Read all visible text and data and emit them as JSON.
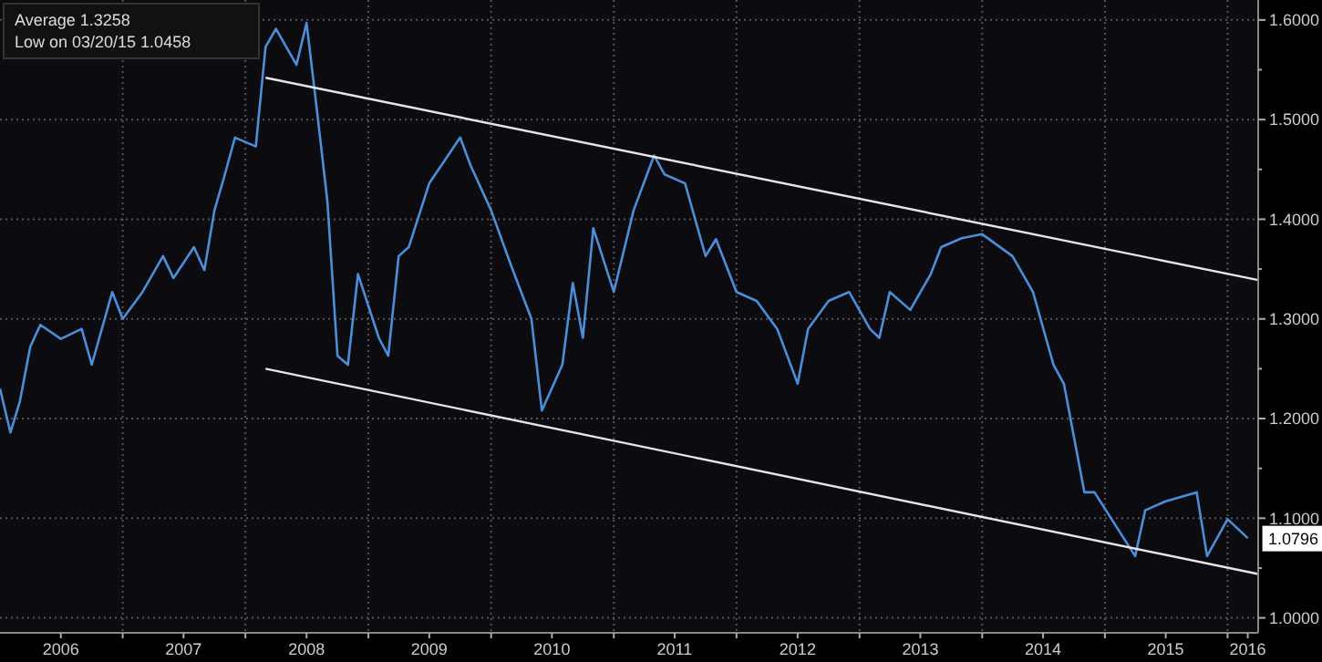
{
  "chart_data": {
    "type": "line",
    "x": [
      "2006-01",
      "2006-02",
      "2006-03",
      "2006-04",
      "2006-05",
      "2006-07",
      "2006-09",
      "2006-10",
      "2006-12",
      "2007-01",
      "2007-03",
      "2007-05",
      "2007-06",
      "2007-08",
      "2007-09",
      "2007-10",
      "2007-11",
      "2007-12",
      "2008-02",
      "2008-03",
      "2008-04",
      "2008-06",
      "2008-07",
      "2008-08",
      "2008-09",
      "2008-10",
      "2008-11",
      "2008-12",
      "2009-02",
      "2009-03",
      "2009-04",
      "2009-05",
      "2009-07",
      "2009-10",
      "2009-11",
      "2010-01",
      "2010-03",
      "2010-05",
      "2010-06",
      "2010-08",
      "2010-09",
      "2010-10",
      "2010-11",
      "2011-01",
      "2011-03",
      "2011-05",
      "2011-06",
      "2011-08",
      "2011-10",
      "2011-11",
      "2012-01",
      "2012-03",
      "2012-05",
      "2012-07",
      "2012-08",
      "2012-10",
      "2012-12",
      "2013-02",
      "2013-03",
      "2013-04",
      "2013-06",
      "2013-08",
      "2013-09",
      "2013-11",
      "2014-01",
      "2014-04",
      "2014-06",
      "2014-08",
      "2014-09",
      "2014-11",
      "2014-12",
      "2015-04",
      "2015-05",
      "2015-07",
      "2015-10",
      "2015-11",
      "2016-01",
      "2016-03"
    ],
    "series": [
      {
        "color": "#4a8fd8",
        "values": [
          1.23,
          1.186,
          1.217,
          1.272,
          1.294,
          1.28,
          1.29,
          1.254,
          1.327,
          1.3,
          1.327,
          1.363,
          1.341,
          1.372,
          1.349,
          1.409,
          1.445,
          1.482,
          1.473,
          1.573,
          1.591,
          1.555,
          1.597,
          1.509,
          1.418,
          1.263,
          1.254,
          1.345,
          1.281,
          1.263,
          1.363,
          1.372,
          1.436,
          1.482,
          1.454,
          1.409,
          1.354,
          1.3,
          1.208,
          1.254,
          1.336,
          1.281,
          1.391,
          1.327,
          1.409,
          1.464,
          1.445,
          1.436,
          1.363,
          1.38,
          1.327,
          1.318,
          1.29,
          1.235,
          1.29,
          1.318,
          1.327,
          1.29,
          1.281,
          1.327,
          1.309,
          1.345,
          1.372,
          1.381,
          1.385,
          1.363,
          1.327,
          1.254,
          1.235,
          1.126,
          1.126,
          1.062,
          1.108,
          1.117,
          1.126,
          1.062,
          1.099,
          1.08
        ]
      },
      {
        "type": "line",
        "color": "#e6e6e6",
        "x": [
          "2008-03",
          "2016-04"
        ],
        "values": [
          1.542,
          1.339
        ]
      },
      {
        "type": "line",
        "color": "#e6e6e6",
        "x": [
          "2008-03",
          "2016-04"
        ],
        "values": [
          1.25,
          1.044
        ]
      }
    ],
    "xlim": [
      "2006-01",
      "2016-04"
    ],
    "ylim": [
      0.985,
      1.62
    ],
    "xticks": [
      {
        "value": "2006-07",
        "label": "2006"
      },
      {
        "value": "2007-07",
        "label": "2007"
      },
      {
        "value": "2008-07",
        "label": "2008"
      },
      {
        "value": "2009-07",
        "label": "2009"
      },
      {
        "value": "2010-07",
        "label": "2010"
      },
      {
        "value": "2011-07",
        "label": "2011"
      },
      {
        "value": "2012-07",
        "label": "2012"
      },
      {
        "value": "2013-07",
        "label": "2013"
      },
      {
        "value": "2014-07",
        "label": "2014"
      },
      {
        "value": "2015-07",
        "label": "2015"
      },
      {
        "value": "2016-03",
        "label": "2016"
      },
      {
        "value": "2007",
        "label": null
      },
      {
        "value": "2008",
        "label": null
      },
      {
        "value": "2009",
        "label": null
      },
      {
        "value": "2010",
        "label": null
      },
      {
        "value": "2011",
        "label": null
      },
      {
        "value": "2012",
        "label": null
      },
      {
        "value": "2013",
        "label": null
      },
      {
        "value": "2014",
        "label": null
      },
      {
        "value": "2015",
        "label": null
      },
      {
        "value": "2016",
        "label": null
      }
    ],
    "yticks": [
      {
        "value": 1,
        "label": "1.0000"
      },
      {
        "value": 1.05,
        "label": null
      },
      {
        "value": 1.1,
        "label": "1.1000"
      },
      {
        "value": 1.15,
        "label": null
      },
      {
        "value": 1.2,
        "label": "1.2000"
      },
      {
        "value": 1.25,
        "label": null
      },
      {
        "value": 1.3,
        "label": "1.3000"
      },
      {
        "value": 1.35,
        "label": null
      },
      {
        "value": 1.4,
        "label": "1.4000"
      },
      {
        "value": 1.45,
        "label": null
      },
      {
        "value": 1.5,
        "label": "1.5000"
      },
      {
        "value": 1.55,
        "label": null
      },
      {
        "value": 1.6,
        "label": "1.6000"
      }
    ],
    "grid": true,
    "annotations": [
      "Average 1.3258",
      "Low on 03/20/15 1.0458",
      {
        "text": "1.0796",
        "x": "2016-03",
        "y": 1.0796
      }
    ]
  }
}
